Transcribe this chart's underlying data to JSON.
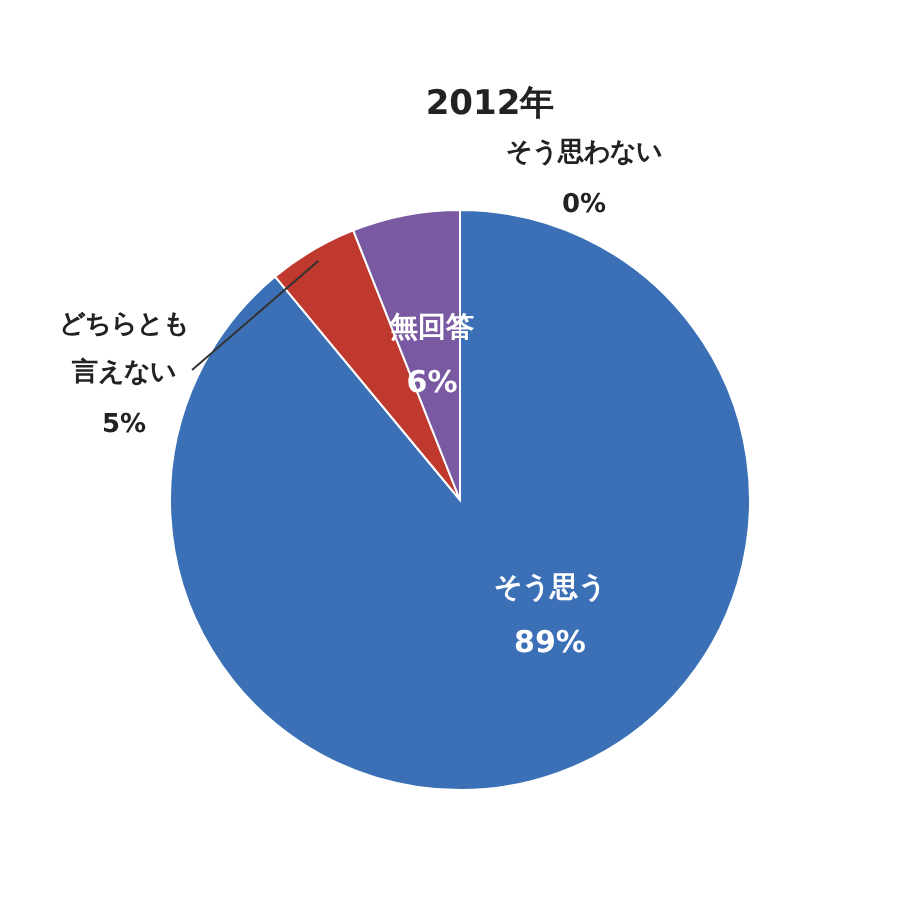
{
  "chart_data": {
    "type": "pie",
    "title": "2012年",
    "categories": [
      "そう思う",
      "どちらとも言えない",
      "そう思わない",
      "無回答"
    ],
    "values": [
      89,
      5,
      0,
      6
    ],
    "value_labels": [
      "89%",
      "5%",
      "0%",
      "6%"
    ],
    "colors": [
      "#3b6fb6",
      "#c0392f",
      "#8aae4f",
      "#7a59a3"
    ]
  }
}
